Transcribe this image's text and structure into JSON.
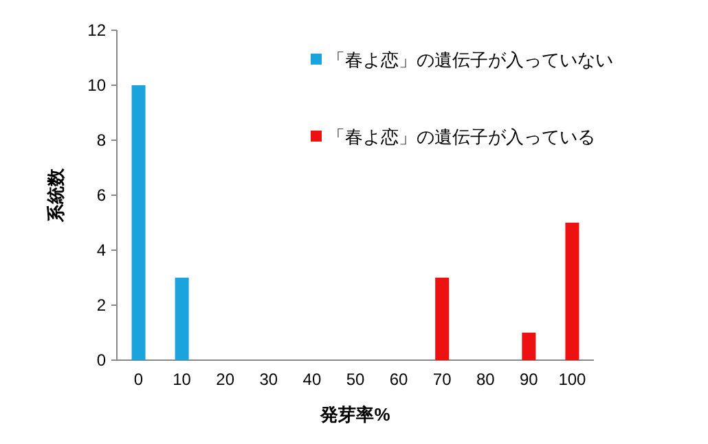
{
  "chart_data": {
    "type": "bar",
    "xlabel": "発芽率%",
    "ylabel": "系統数",
    "categories": [
      "0",
      "10",
      "20",
      "30",
      "40",
      "50",
      "60",
      "70",
      "80",
      "90",
      "100"
    ],
    "series": [
      {
        "name": "「春よ恋」の遺伝子が入っていない",
        "color": "#1aa3dc",
        "values": [
          10,
          3,
          null,
          null,
          null,
          null,
          null,
          null,
          null,
          null,
          null
        ]
      },
      {
        "name": "「春よ恋」の遺伝子が入っている",
        "color": "#ee1111",
        "values": [
          null,
          null,
          null,
          null,
          null,
          null,
          null,
          3,
          null,
          1,
          5
        ]
      }
    ],
    "ylim": [
      0,
      12
    ],
    "yticks": [
      0,
      2,
      4,
      6,
      8,
      10,
      12
    ],
    "grid": false,
    "legend": "top right"
  }
}
